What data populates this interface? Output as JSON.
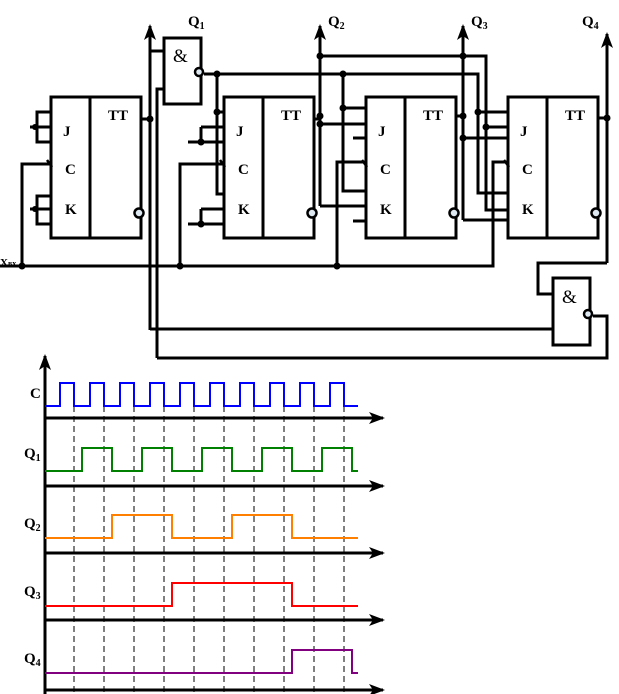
{
  "circuit": {
    "input_label": "Xвх",
    "input_label_main": "X",
    "input_label_sub": "вх",
    "flipflops": [
      {
        "type": "TT",
        "j": "J",
        "c": "C",
        "k": "K"
      },
      {
        "type": "TT",
        "j": "J",
        "c": "C",
        "k": "K"
      },
      {
        "type": "TT",
        "j": "J",
        "c": "C",
        "k": "K"
      },
      {
        "type": "TT",
        "j": "J",
        "c": "C",
        "k": "K"
      }
    ],
    "gates": [
      {
        "symbol": "&"
      },
      {
        "symbol": "&"
      }
    ],
    "outputs": [
      {
        "main": "Q",
        "sub": "1"
      },
      {
        "main": "Q",
        "sub": "2"
      },
      {
        "main": "Q",
        "sub": "3"
      },
      {
        "main": "Q",
        "sub": "4"
      }
    ]
  },
  "timing": {
    "signals": [
      {
        "main": "C",
        "sub": "",
        "color": "#0000ff"
      },
      {
        "main": "Q",
        "sub": "1",
        "color": "#008000",
        "states_after_edges": [
          1,
          0,
          1,
          0,
          1,
          0,
          1,
          0,
          1,
          0
        ]
      },
      {
        "main": "Q",
        "sub": "2",
        "color": "#ff7f00",
        "states_after_edges": [
          0,
          1,
          1,
          0,
          0,
          1,
          1,
          0,
          0,
          0
        ]
      },
      {
        "main": "Q",
        "sub": "3",
        "color": "#ff0000",
        "states_after_edges": [
          0,
          0,
          0,
          1,
          1,
          1,
          1,
          0,
          0,
          0
        ]
      },
      {
        "main": "Q",
        "sub": "4",
        "color": "#800080",
        "states_after_edges": [
          0,
          0,
          0,
          0,
          0,
          0,
          0,
          1,
          1,
          0
        ]
      }
    ],
    "clock_pulses": 10
  }
}
